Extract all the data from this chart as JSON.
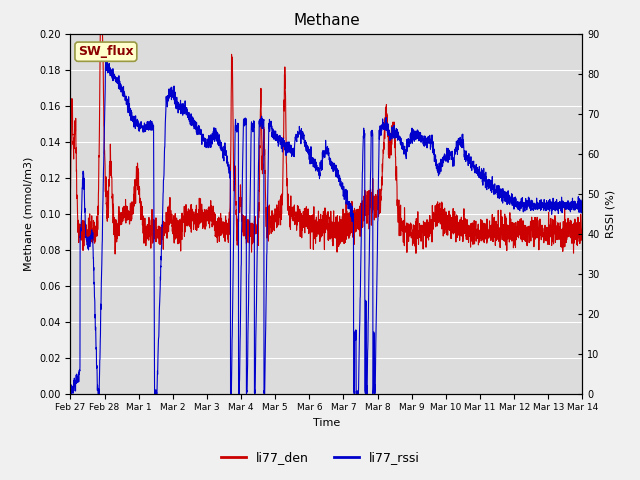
{
  "title": "Methane",
  "xlabel": "Time",
  "ylabel_left": "Methane (mmol/m3)",
  "ylabel_right": "RSSI (%)",
  "ylim_left": [
    0.0,
    0.2
  ],
  "ylim_right": [
    0,
    90
  ],
  "yticks_left": [
    0.0,
    0.02,
    0.04,
    0.06,
    0.08,
    0.1,
    0.12,
    0.14,
    0.16,
    0.18,
    0.2
  ],
  "yticks_right": [
    0,
    10,
    20,
    30,
    40,
    50,
    60,
    70,
    80,
    90
  ],
  "bg_color": "#dcdcdc",
  "fig_color": "#f0f0f0",
  "legend_label_red": "li77_den",
  "legend_label_blue": "li77_rssi",
  "legend_color_red": "#cc0000",
  "legend_color_blue": "#0000cc",
  "annotation_text": "SW_flux",
  "annotation_color": "#8b0000",
  "annotation_bg": "#ffffcc",
  "annotation_edge": "#999944",
  "line_width": 0.8,
  "grid_color": "#ffffff",
  "xtick_labels": [
    "Feb 27",
    "Feb 28",
    "Mar 1",
    "Mar 2",
    "Mar 3",
    "Mar 4",
    "Mar 5",
    "Mar 6",
    "Mar 7",
    "Mar 8",
    "Mar 9",
    "Mar 10",
    "Mar 11",
    "Mar 12",
    "Mar 13",
    "Mar 14"
  ],
  "n_points": 3000
}
